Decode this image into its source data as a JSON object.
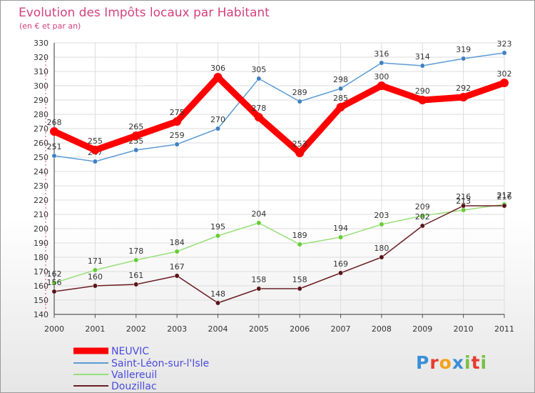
{
  "chart_data": {
    "type": "line",
    "title": "Evolution des Impôts locaux par Habitant",
    "subtitle": "(en € et par an)",
    "xlabel": "",
    "ylabel": "",
    "ylim": [
      140,
      330
    ],
    "yticks": [
      140,
      150,
      160,
      170,
      180,
      190,
      200,
      210,
      220,
      230,
      240,
      250,
      260,
      270,
      280,
      290,
      300,
      310,
      320,
      330
    ],
    "grid": true,
    "categories": [
      "2000",
      "2001",
      "2002",
      "2003",
      "2004",
      "2005",
      "2006",
      "2007",
      "2008",
      "2009",
      "2010",
      "2011"
    ],
    "series": [
      {
        "name": "Saint-Léon-sur-l'Isle",
        "color": "#5b9bd5",
        "dot": "#3f7fc0",
        "values": [
          251,
          247,
          255,
          259,
          270,
          305,
          289,
          298,
          316,
          314,
          319,
          323
        ]
      },
      {
        "name": "Vallereuil",
        "color": "#99e07a",
        "dot": "#66cc33",
        "values": [
          162,
          171,
          178,
          184,
          195,
          204,
          189,
          194,
          203,
          209,
          213,
          217
        ]
      },
      {
        "name": "Douzillac",
        "color": "#6b1f24",
        "dot": "#5a1418",
        "values": [
          156,
          160,
          161,
          167,
          148,
          158,
          158,
          169,
          180,
          202,
          216,
          216
        ]
      },
      {
        "name": "NEUVIC",
        "color": "#ff0000",
        "dot": "#ff0000",
        "values": [
          268,
          255,
          265,
          275,
          306,
          278,
          253,
          285,
          300,
          290,
          292,
          302
        ]
      }
    ],
    "legend": [
      "NEUVIC",
      "Saint-Léon-sur-l'Isle",
      "Vallereuil",
      "Douzillac"
    ],
    "legend_position": "bottom-left"
  },
  "branding": {
    "logo_text": "Proxiti"
  }
}
